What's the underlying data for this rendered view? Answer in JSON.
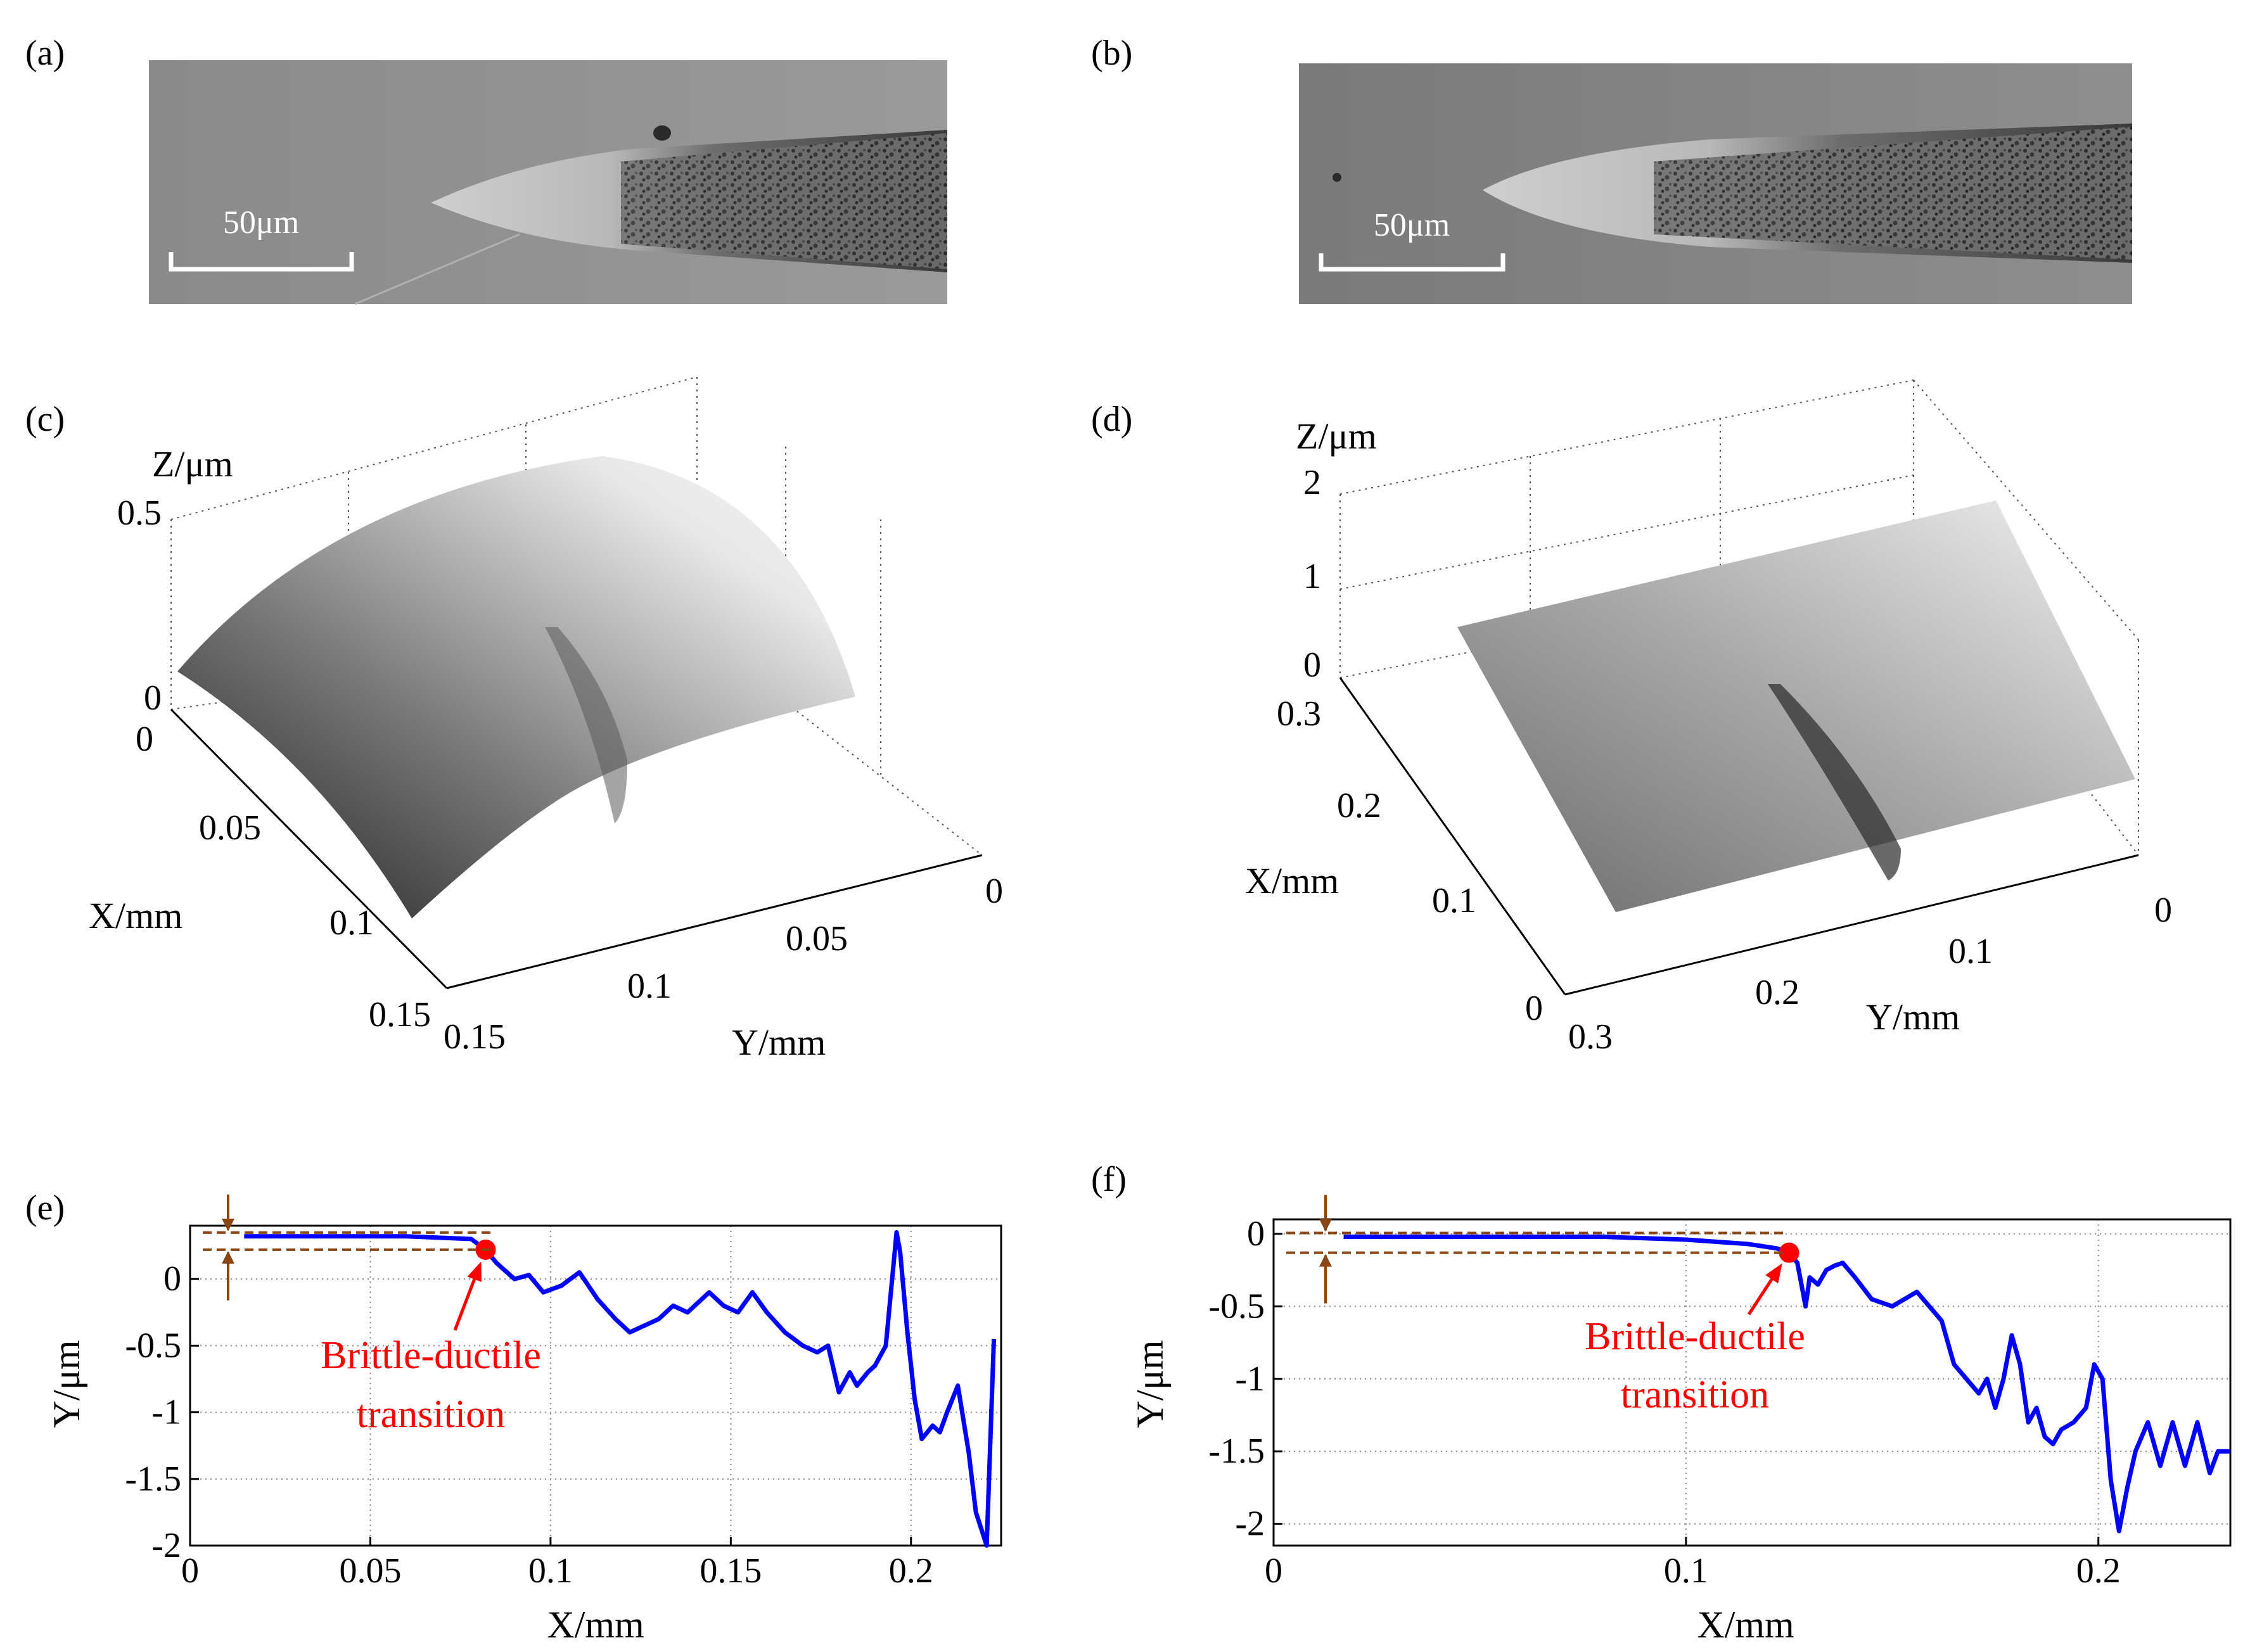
{
  "panels": {
    "a": {
      "label": "(a)",
      "scale_label": "50μm"
    },
    "b": {
      "label": "(b)",
      "scale_label": "50μm"
    },
    "c": {
      "label": "(c)",
      "z_axis_label": "Z/μm",
      "x_axis_label": "X/mm",
      "y_axis_label": "Y/mm",
      "z_ticks": [
        "0.5",
        "0"
      ],
      "x_ticks": [
        "0",
        "0.05",
        "0.1",
        "0.15"
      ],
      "y_ticks": [
        "0.15",
        "0.1",
        "0.05",
        "0"
      ]
    },
    "d": {
      "label": "(d)",
      "z_axis_label": "Z/μm",
      "x_axis_label": "X/mm",
      "y_axis_label": "Y/mm",
      "z_ticks": [
        "2",
        "1",
        "0"
      ],
      "x_ticks": [
        "0.3",
        "0.2",
        "0.1",
        "0"
      ],
      "y_ticks": [
        "0.3",
        "0.2",
        "0.1",
        "0"
      ]
    }
  },
  "chart_data": [
    {
      "id": "e",
      "panel_label": "(e)",
      "type": "line",
      "xlabel": "X/mm",
      "ylabel": "Y/μm",
      "xlim": [
        0,
        0.225
      ],
      "ylim": [
        -2,
        0.4
      ],
      "x_ticks": [
        0,
        0.05,
        0.1,
        0.15,
        0.2
      ],
      "x_tick_labels": [
        "0",
        "0.05",
        "0.1",
        "0.15",
        "0.2"
      ],
      "y_ticks": [
        0,
        -0.5,
        -1,
        -1.5,
        -2
      ],
      "y_tick_labels": [
        "0",
        "-0.5",
        "-1",
        "-1.5",
        "-2"
      ],
      "series_color": "#0000ff",
      "annotation_color": "#ff0000",
      "bracket_color": "#8b4513",
      "annotation_text": [
        "Brittle-ductile",
        "transition"
      ],
      "transition_point": [
        0.082,
        0.22
      ],
      "series": [
        {
          "name": "profile",
          "x": [
            0.015,
            0.04,
            0.06,
            0.078,
            0.082,
            0.085,
            0.09,
            0.094,
            0.098,
            0.103,
            0.108,
            0.113,
            0.118,
            0.122,
            0.126,
            0.13,
            0.134,
            0.138,
            0.144,
            0.148,
            0.152,
            0.156,
            0.16,
            0.165,
            0.17,
            0.174,
            0.177,
            0.18,
            0.183,
            0.185,
            0.188,
            0.19,
            0.193,
            0.196,
            0.197,
            0.199,
            0.201,
            0.203,
            0.206,
            0.208,
            0.21,
            0.213,
            0.216,
            0.218,
            0.221,
            0.223
          ],
          "y": [
            0.32,
            0.32,
            0.32,
            0.3,
            0.22,
            0.12,
            0.0,
            0.03,
            -0.1,
            -0.05,
            0.05,
            -0.15,
            -0.3,
            -0.4,
            -0.35,
            -0.3,
            -0.2,
            -0.25,
            -0.1,
            -0.2,
            -0.25,
            -0.1,
            -0.25,
            -0.4,
            -0.5,
            -0.55,
            -0.5,
            -0.85,
            -0.7,
            -0.8,
            -0.7,
            -0.65,
            -0.5,
            0.35,
            0.2,
            -0.4,
            -0.9,
            -1.2,
            -1.1,
            -1.15,
            -1.0,
            -0.8,
            -1.3,
            -1.75,
            -2.0,
            -0.45
          ]
        }
      ]
    },
    {
      "id": "f",
      "panel_label": "(f)",
      "type": "line",
      "xlabel": "X/mm",
      "ylabel": "Y/μm",
      "xlim": [
        0,
        0.232
      ],
      "ylim": [
        -2.15,
        0.1
      ],
      "x_ticks": [
        0,
        0.1,
        0.2
      ],
      "x_tick_labels": [
        "0",
        "0.1",
        "0.2"
      ],
      "y_ticks": [
        0,
        -0.5,
        -1,
        -1.5,
        -2
      ],
      "y_tick_labels": [
        "0",
        "-0.5",
        "-1",
        "-1.5",
        "-2"
      ],
      "series_color": "#0000ff",
      "annotation_color": "#ff0000",
      "bracket_color": "#8b4513",
      "annotation_text": [
        "Brittle-ductile",
        "transition"
      ],
      "transition_point": [
        0.125,
        -0.13
      ],
      "series": [
        {
          "name": "profile",
          "x": [
            0.017,
            0.05,
            0.08,
            0.1,
            0.115,
            0.122,
            0.125,
            0.127,
            0.129,
            0.13,
            0.132,
            0.134,
            0.136,
            0.138,
            0.141,
            0.145,
            0.15,
            0.153,
            0.156,
            0.159,
            0.162,
            0.165,
            0.168,
            0.171,
            0.173,
            0.175,
            0.177,
            0.179,
            0.181,
            0.183,
            0.185,
            0.187,
            0.189,
            0.191,
            0.194,
            0.197,
            0.199,
            0.201,
            0.203,
            0.205,
            0.207,
            0.209,
            0.212,
            0.215,
            0.218,
            0.221,
            0.224,
            0.227,
            0.229,
            0.232
          ],
          "y": [
            -0.02,
            -0.02,
            -0.02,
            -0.04,
            -0.07,
            -0.1,
            -0.13,
            -0.2,
            -0.5,
            -0.3,
            -0.35,
            -0.25,
            -0.22,
            -0.2,
            -0.3,
            -0.45,
            -0.5,
            -0.45,
            -0.4,
            -0.5,
            -0.6,
            -0.9,
            -1.0,
            -1.1,
            -1.0,
            -1.2,
            -1.0,
            -0.7,
            -0.9,
            -1.3,
            -1.2,
            -1.4,
            -1.45,
            -1.35,
            -1.3,
            -1.2,
            -0.9,
            -1.0,
            -1.7,
            -2.05,
            -1.75,
            -1.5,
            -1.3,
            -1.6,
            -1.3,
            -1.6,
            -1.3,
            -1.65,
            -1.5,
            -1.5
          ]
        }
      ]
    }
  ]
}
